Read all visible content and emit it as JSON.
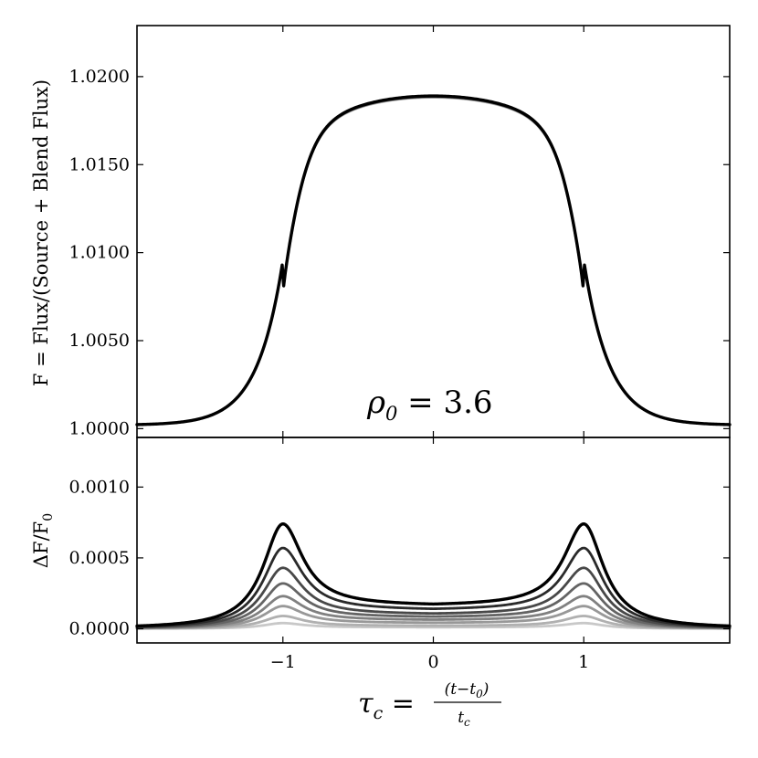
{
  "chart_data": [
    {
      "panel": "top",
      "type": "line",
      "ylabel": "F = Flux/(Source + Blend Flux)",
      "ylim": [
        0.9995,
        1.0229
      ],
      "xlim": [
        -1.97,
        1.97
      ],
      "yticks": [
        1.0,
        1.005,
        1.01,
        1.015,
        1.02
      ],
      "ytick_labels": [
        "1.0000",
        "1.0050",
        "1.0100",
        "1.0150",
        "1.0200"
      ],
      "annotation": "ρ0 = 3.6",
      "peak_value": 1.0189,
      "baseline_value": 1.0002,
      "series_count": 8,
      "series_colors": [
        "#c8c8c8",
        "#b0b0b0",
        "#989898",
        "#808080",
        "#646464",
        "#484848",
        "#2a2a2a",
        "#000000"
      ]
    },
    {
      "panel": "bottom",
      "type": "line",
      "ylabel": "ΔF/F0",
      "ylim": [
        -0.0001,
        0.00135
      ],
      "xlim": [
        -1.97,
        1.97
      ],
      "yticks": [
        0.0,
        0.0005,
        0.001
      ],
      "ytick_labels": [
        "0.0000",
        "0.0005",
        "0.0010"
      ],
      "xticks": [
        -1,
        0,
        1
      ],
      "xtick_labels": [
        "−1",
        "0",
        "1"
      ],
      "xlabel": "τc = (t−t0)/tc",
      "series": [
        {
          "peak": 4e-05,
          "center": 1e-05,
          "color": "#c8c8c8"
        },
        {
          "peak": 9e-05,
          "center": 2e-05,
          "color": "#b0b0b0"
        },
        {
          "peak": 0.00016,
          "center": 4e-05,
          "color": "#989898"
        },
        {
          "peak": 0.00023,
          "center": 6e-05,
          "color": "#808080"
        },
        {
          "peak": 0.00032,
          "center": 8e-05,
          "color": "#646464"
        },
        {
          "peak": 0.00043,
          "center": 0.0001,
          "color": "#484848"
        },
        {
          "peak": 0.00057,
          "center": 0.00013,
          "color": "#2a2a2a"
        },
        {
          "peak": 0.00074,
          "center": 0.00016,
          "color": "#000000"
        }
      ]
    }
  ],
  "labels": {
    "top_ylabel": "F = Flux/(Source + Blend Flux)",
    "bottom_ylabel": "ΔF/F",
    "bottom_ylabel_sub": "0",
    "annotation": "ρ",
    "annotation_sub": "0",
    "annotation_value": " = 3.6",
    "xlabel_tau": "τ",
    "xlabel_sub": "c",
    "xlabel_eq": " = ",
    "xlabel_num": "(t−t",
    "xlabel_num_sub": "0",
    "xlabel_num_close": ")",
    "xlabel_den": "t",
    "xlabel_den_sub": "c"
  }
}
